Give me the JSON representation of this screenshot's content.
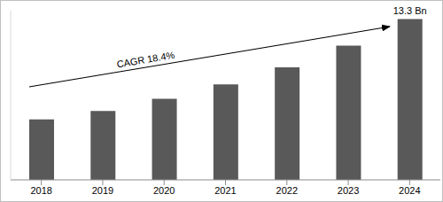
{
  "chart_data": {
    "type": "bar",
    "categories": [
      "2018",
      "2019",
      "2020",
      "2021",
      "2022",
      "2023",
      "2024"
    ],
    "values": [
      5.0,
      5.7,
      6.7,
      7.9,
      9.3,
      11.1,
      13.3
    ],
    "data_labels": true,
    "value_labels": [
      null,
      null,
      null,
      null,
      null,
      null,
      "13.3 Bn"
    ],
    "color": "#595959",
    "ylim": [
      0,
      14
    ],
    "tick_labels": "x",
    "grid": false,
    "annotation": "CAGR 18.4%"
  }
}
